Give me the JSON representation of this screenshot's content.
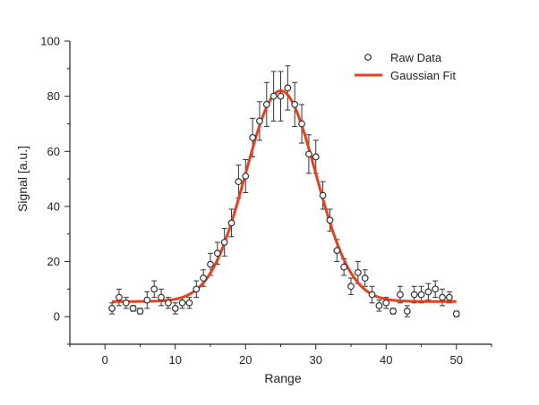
{
  "chart_data": {
    "type": "scatter",
    "xlabel": "Range",
    "ylabel": "Signal [a.u.]",
    "xlim": [
      -5,
      55
    ],
    "ylim": [
      -10,
      100
    ],
    "xticks": [
      0,
      10,
      20,
      30,
      40,
      50
    ],
    "yticks": [
      0,
      20,
      40,
      60,
      80,
      100
    ],
    "grid": false,
    "legend_position": "top-right",
    "colors": {
      "raw": "#333333",
      "fit": "#e8401c",
      "axis": "#222222"
    },
    "series": [
      {
        "name": "Raw Data",
        "marker": "open-circle",
        "x": [
          1,
          2,
          3,
          4,
          5,
          6,
          7,
          8,
          9,
          10,
          11,
          12,
          13,
          14,
          15,
          16,
          17,
          18,
          19,
          20,
          21,
          22,
          23,
          24,
          25,
          26,
          27,
          28,
          29,
          30,
          31,
          32,
          33,
          34,
          35,
          36,
          37,
          38,
          39,
          40,
          41,
          42,
          43,
          44,
          45,
          46,
          47,
          48,
          49,
          50
        ],
        "y": [
          3,
          7,
          5,
          3,
          2,
          6,
          10,
          7,
          5,
          3,
          5,
          5,
          10,
          14,
          19,
          23,
          27,
          34,
          49,
          51,
          65,
          71,
          77,
          80,
          80,
          83,
          77,
          70,
          59,
          58,
          44,
          35,
          24,
          18,
          11,
          16,
          14,
          8,
          4,
          5,
          2,
          8,
          2,
          8,
          8,
          9,
          10,
          7,
          7,
          1
        ],
        "error": [
          2,
          3,
          2,
          1,
          1,
          3,
          3,
          3,
          2,
          2,
          2,
          2,
          3,
          3,
          4,
          4,
          5,
          5,
          6,
          6,
          7,
          7,
          8,
          9,
          9,
          8,
          8,
          7,
          7,
          6,
          5,
          4,
          4,
          3,
          3,
          4,
          3,
          3,
          2,
          2,
          1,
          3,
          2,
          3,
          3,
          3,
          3,
          3,
          2,
          1
        ]
      },
      {
        "name": "Gaussian Fit",
        "type": "line",
        "model": "gaussian",
        "baseline": 5.5,
        "amplitude": 76.5,
        "center": 25,
        "sigma": 5
      }
    ]
  }
}
